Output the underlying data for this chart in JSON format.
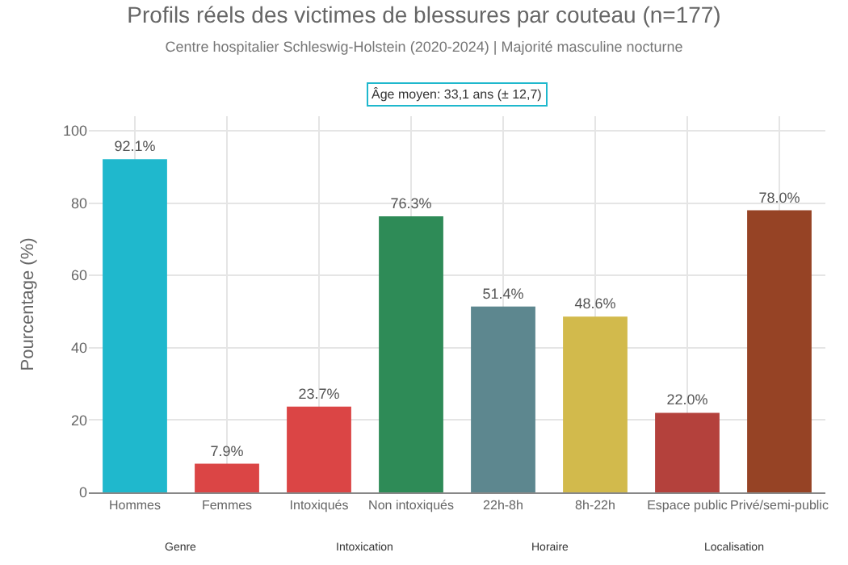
{
  "chart_data": {
    "type": "bar",
    "title": "Profils réels des victimes de blessures par couteau (n=177)",
    "subtitle": "Centre hospitalier Schleswig-Holstein (2020-2024) | Majorité masculine nocturne",
    "ylabel": "Pourcentage (%)",
    "categories": [
      "Hommes",
      "Femmes",
      "Intoxiqués",
      "Non intoxiqués",
      "22h-8h",
      "8h-22h",
      "Espace public",
      "Privé/semi-public"
    ],
    "values": [
      92.1,
      7.9,
      23.7,
      76.3,
      51.4,
      48.6,
      22.0,
      78.0
    ],
    "colors": [
      "#1fb8cd",
      "#db4545",
      "#db4545",
      "#2e8b57",
      "#5d878f",
      "#d2ba4c",
      "#b4413c",
      "#964325"
    ],
    "value_labels": [
      "92.1%",
      "7.9%",
      "23.7%",
      "76.3%",
      "51.4%",
      "48.6%",
      "22.0%",
      "78.0%"
    ],
    "ylim": [
      0,
      104
    ],
    "yticks": [
      0,
      20,
      40,
      60,
      80,
      100
    ],
    "grid": true,
    "legend": false,
    "annotations": [
      "Âge moyen: 33,1 ans (± 12,7)",
      "Genre",
      "Intoxication",
      "Horaire",
      "Localisation"
    ]
  }
}
